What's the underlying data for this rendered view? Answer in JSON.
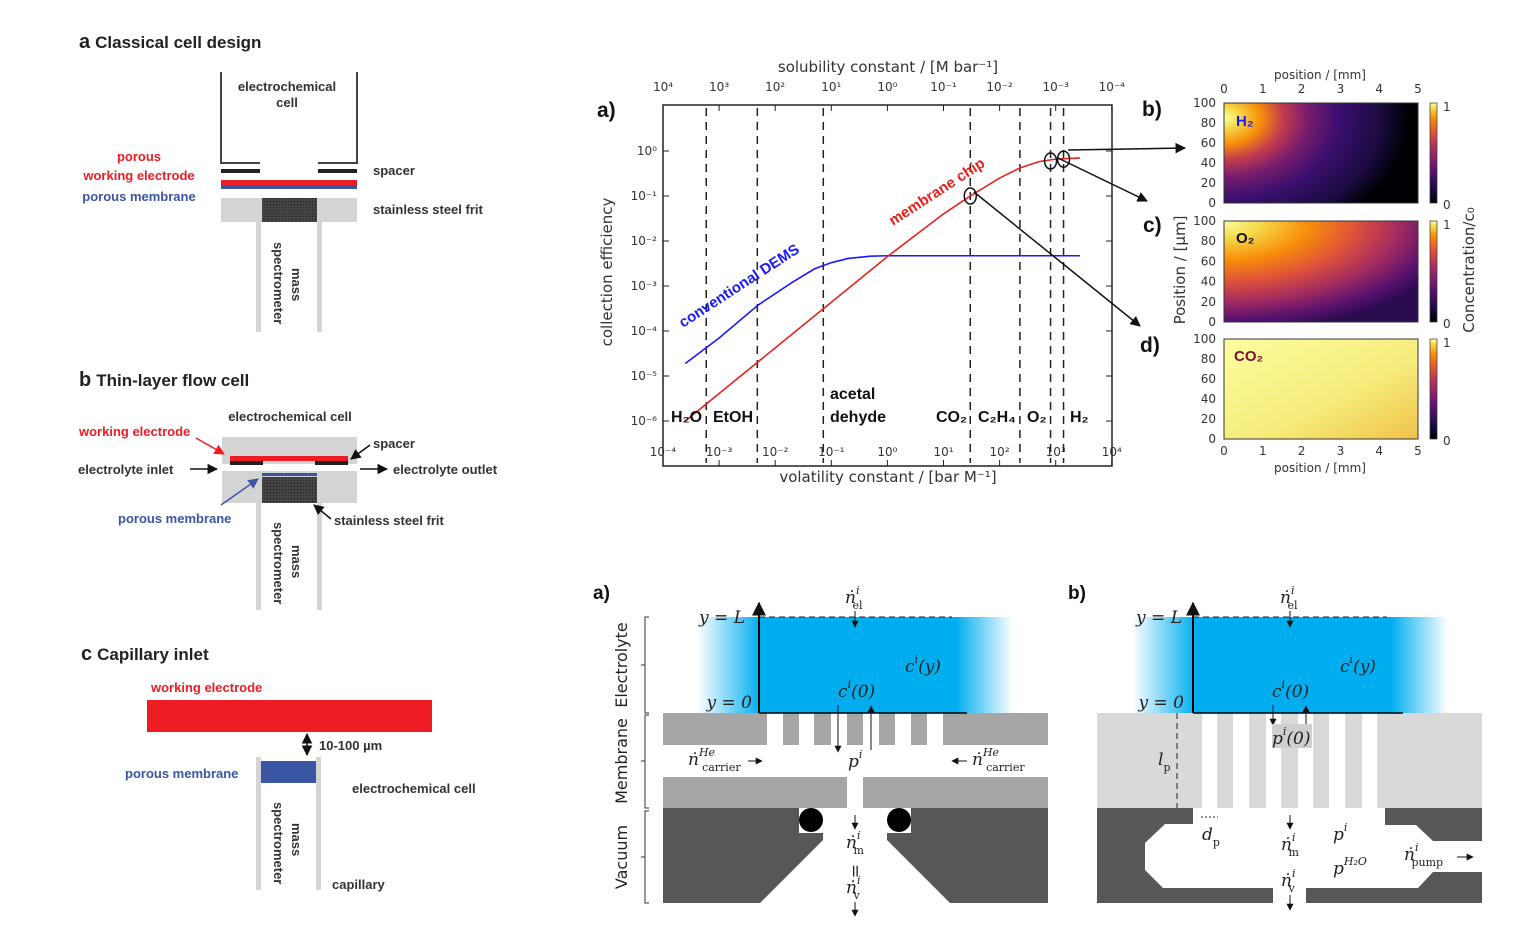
{
  "left": {
    "panel_a": {
      "letter": "a",
      "title": "Classical cell design",
      "cell_line1": "electrochemical",
      "cell_line2": "cell",
      "porous": "porous",
      "working_electrode": "working electrode",
      "porous_membrane": "porous membrane",
      "spacer": "spacer",
      "frit": "stainless steel frit",
      "ms_line1": "mass",
      "ms_line2": "spectrometer"
    },
    "panel_b": {
      "letter": "b",
      "title": "Thin-layer flow cell",
      "cell": "electrochemical cell",
      "working_electrode": "working electrode",
      "spacer": "spacer",
      "inlet": "electrolyte inlet",
      "outlet": "electrolyte outlet",
      "porous_membrane": "porous membrane",
      "frit": "stainless steel frit",
      "ms_line1": "mass",
      "ms_line2": "spectrometer"
    },
    "panel_c": {
      "letter": "c",
      "title": "Capillary inlet",
      "working_electrode": "working electrode",
      "gap": "10-100 µm",
      "porous_membrane": "porous membrane",
      "cell": "electrochemical cell",
      "capillary": "capillary",
      "ms_line1": "mass",
      "ms_line2": "spectrometer"
    },
    "colors": {
      "red": "#ee1c24",
      "blue": "#3a55a4",
      "grey": "#d4d4d4",
      "dark": "#333333"
    }
  },
  "chart_data": [
    {
      "type": "line",
      "panel_label": "a)",
      "xlabel": "volatility constant / [bar M⁻¹]",
      "x2label": "solubility constant / [M bar⁻¹]",
      "ylabel": "collection efficiency",
      "xscale": "log",
      "yscale": "log",
      "xlim": [
        0.0001,
        10000
      ],
      "ylim": [
        1e-07,
        10
      ],
      "x_ticks": [
        "10⁻⁴",
        "10⁻³",
        "10⁻²",
        "10⁻¹",
        "10⁰",
        "10¹",
        "10²",
        "10³",
        "10⁴"
      ],
      "x2_ticks": [
        "10⁴",
        "10³",
        "10²",
        "10¹",
        "10⁰",
        "10⁻¹",
        "10⁻²",
        "10⁻³",
        "10⁻⁴"
      ],
      "y_ticks": [
        "10⁰",
        "10⁻¹",
        "10⁻²",
        "10⁻³",
        "10⁻⁴",
        "10⁻⁵",
        "10⁻⁶"
      ],
      "grid": false,
      "series": [
        {
          "name": "conventional DEMS",
          "color": "#1a1aff",
          "points": [
            [
              0.00025,
              1.9e-05
            ],
            [
              0.001,
              7e-05
            ],
            [
              0.005,
              0.00038
            ],
            [
              0.02,
              0.0012
            ],
            [
              0.05,
              0.0024
            ],
            [
              0.1,
              0.0033
            ],
            [
              0.2,
              0.0041
            ],
            [
              0.5,
              0.0046
            ],
            [
              1,
              0.0047
            ],
            [
              2700,
              0.0047
            ]
          ]
        },
        {
          "name": "membrane chip",
          "color": "#e8211c",
          "points": [
            [
              0.00025,
              1e-06
            ],
            [
              1,
              0.0045
            ],
            [
              10,
              0.04
            ],
            [
              30,
              0.1
            ],
            [
              100,
              0.25
            ],
            [
              230,
              0.42
            ],
            [
              500,
              0.58
            ],
            [
              1000,
              0.66
            ],
            [
              2700,
              0.7
            ]
          ]
        }
      ],
      "species": [
        {
          "label": "H₂O",
          "x": 0.00059
        },
        {
          "label": "EtOH",
          "x": 0.0048
        },
        {
          "label": "acetal",
          "label2": "dehyde",
          "x": 0.072
        },
        {
          "label": "CO₂",
          "x": 30
        },
        {
          "label": "C₂H₄",
          "x": 230
        },
        {
          "label": "O₂",
          "x": 810
        },
        {
          "label": "H₂",
          "x": 1380
        }
      ],
      "highlights": [
        {
          "species": "CO₂",
          "x": 30,
          "y": 0.1,
          "target": "d)"
        },
        {
          "species": "O₂",
          "x": 810,
          "y": 0.6,
          "target": "c)"
        },
        {
          "species": "H₂",
          "x": 1380,
          "y": 0.66,
          "target": "b)"
        }
      ]
    },
    {
      "type": "heatmap",
      "xlabel": "position / [mm]",
      "ylabel": "Position / [µm]",
      "colorbar_label": "Concentration/c₀",
      "colormap": "inferno",
      "clim": [
        0,
        1
      ],
      "x_ticks": [
        "0",
        "1",
        "2",
        "3",
        "4",
        "5"
      ],
      "y_ticks": [
        "0",
        "20",
        "40",
        "60",
        "80",
        "100"
      ],
      "colorbar_ticks": [
        "0",
        "1"
      ],
      "panels": [
        {
          "label": "b)",
          "species": "H₂",
          "species_color": "#1a1aff"
        },
        {
          "label": "c)",
          "species": "O₂",
          "species_color": "#111111"
        },
        {
          "label": "d)",
          "species": "CO₂",
          "species_color": "#7a1030"
        }
      ]
    }
  ],
  "diagram_a": {
    "label": "a)",
    "side": {
      "electrolyte": "Electrolyte",
      "membrane": "Membrane",
      "vacuum": "Vacuum"
    },
    "yL": "y = L",
    "y0": "y = 0",
    "n_el": {
      "base": "ṅ",
      "sup": "i",
      "sub": "el"
    },
    "c_y": {
      "base": "c",
      "sup": "i",
      "rest": "(y)"
    },
    "c_0": {
      "base": "c",
      "sup": "i",
      "rest": "(0)"
    },
    "p": {
      "base": "p",
      "sup": "i"
    },
    "carrier_left": {
      "base": "ṅ",
      "sup": "He",
      "sub": "carrier"
    },
    "carrier_right": {
      "base": "ṅ",
      "sup": "He",
      "sub": "carrier"
    },
    "n_m": {
      "base": "ṅ",
      "sup": "i",
      "sub": "m"
    },
    "equals": "=",
    "n_v": {
      "base": "ṅ",
      "sup": "i",
      "sub": "v"
    },
    "colors": {
      "electrolyte": "#00aeef",
      "membrane": "#a6a6a6",
      "vacuum": "#575757"
    }
  },
  "diagram_b": {
    "label": "b)",
    "yL": "y = L",
    "y0": "y = 0",
    "n_el": {
      "base": "ṅ",
      "sup": "i",
      "sub": "el"
    },
    "c_y": {
      "base": "c",
      "sup": "i",
      "rest": "(y)"
    },
    "c_0": {
      "base": "c",
      "sup": "i",
      "rest": "(0)"
    },
    "p_0": {
      "base": "p",
      "sup": "i",
      "rest": "(0)"
    },
    "l_p": {
      "base": "l",
      "sub": "p"
    },
    "d_p": {
      "base": "d",
      "sub": "p"
    },
    "n_m": {
      "base": "ṅ",
      "sup": "i",
      "sub": "m"
    },
    "n_v": {
      "base": "ṅ",
      "sup": "i",
      "sub": "v"
    },
    "p": {
      "base": "p",
      "sup": "i"
    },
    "p_h2o": {
      "base": "p",
      "sup": "H₂O"
    },
    "n_pump": {
      "base": "ṅ",
      "sup": "i",
      "sub": "pump"
    },
    "colors": {
      "electrolyte": "#00aeef",
      "membrane": "#d9d9d9",
      "vacuum": "#575757"
    }
  }
}
